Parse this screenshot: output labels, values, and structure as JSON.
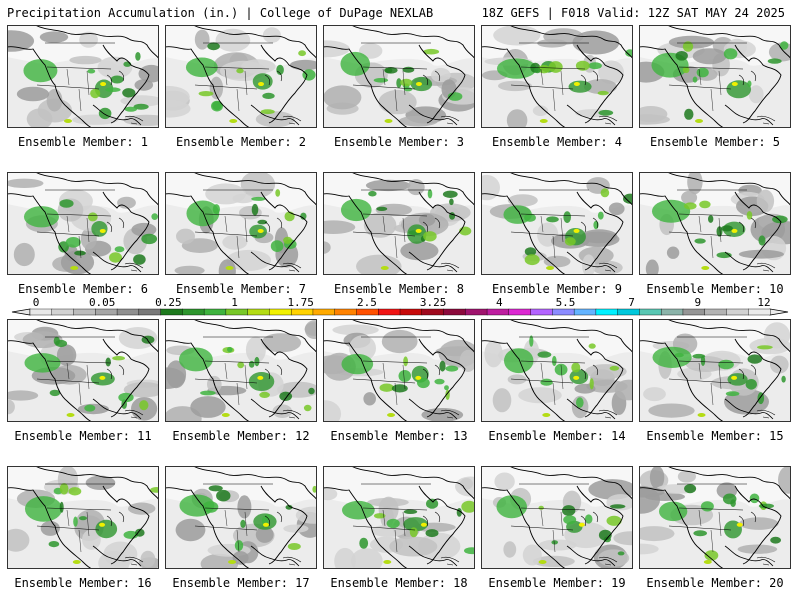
{
  "header": {
    "left_title": "Precipitation Accumulation (in.) | College of DuPage NEXLAB",
    "right_title": "18Z GEFS | F018 Valid: 12Z SAT MAY 24 2025"
  },
  "members": [
    {
      "label": "Ensemble Member: 1"
    },
    {
      "label": "Ensemble Member: 2"
    },
    {
      "label": "Ensemble Member: 3"
    },
    {
      "label": "Ensemble Member: 4"
    },
    {
      "label": "Ensemble Member: 5"
    },
    {
      "label": "Ensemble Member: 6"
    },
    {
      "label": "Ensemble Member: 7"
    },
    {
      "label": "Ensemble Member: 8"
    },
    {
      "label": "Ensemble Member: 9"
    },
    {
      "label": "Ensemble Member: 10"
    },
    {
      "label": "Ensemble Member: 11"
    },
    {
      "label": "Ensemble Member: 12"
    },
    {
      "label": "Ensemble Member: 13"
    },
    {
      "label": "Ensemble Member: 14"
    },
    {
      "label": "Ensemble Member: 15"
    },
    {
      "label": "Ensemble Member: 16"
    },
    {
      "label": "Ensemble Member: 17"
    },
    {
      "label": "Ensemble Member: 18"
    },
    {
      "label": "Ensemble Member: 19"
    },
    {
      "label": "Ensemble Member: 20"
    }
  ],
  "colorbar": {
    "tick_labels": [
      "0",
      "0.05",
      "0.25",
      "1",
      "1.75",
      "2.5",
      "3.25",
      "4",
      "5.5",
      "7",
      "9",
      "12"
    ],
    "colors": [
      "#e8e8e8",
      "#d2d2d2",
      "#bcbcbc",
      "#a6a6a6",
      "#909090",
      "#7a7a7a",
      "#1e7a1e",
      "#2e962e",
      "#3fb43f",
      "#78c828",
      "#b4dc14",
      "#f0f000",
      "#ffd200",
      "#ffaa00",
      "#ff8200",
      "#ff5000",
      "#f01414",
      "#c80a0a",
      "#a00a1e",
      "#8c0a3c",
      "#a0146e",
      "#be1ea0",
      "#dc28d2",
      "#b464ff",
      "#8c8cff",
      "#64b4ff",
      "#00f0ff",
      "#00c8dc",
      "#5ac8b4",
      "#8cb4aa",
      "#969696",
      "#b4b4b4",
      "#d2d2d2",
      "#ebebeb"
    ]
  }
}
